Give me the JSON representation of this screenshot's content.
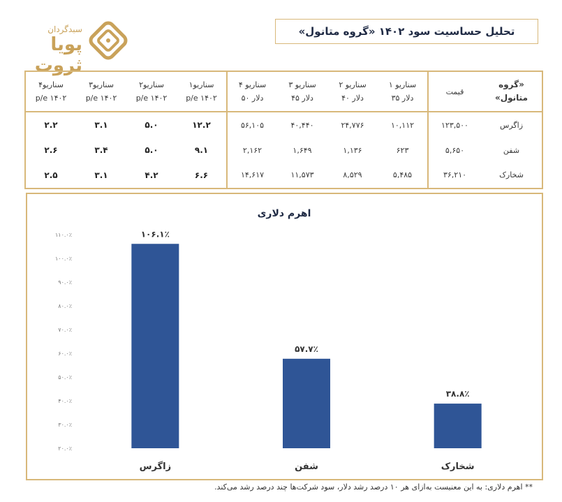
{
  "header": {
    "title": "تحلیل حساسیت سود ۱۴۰۲ «گروه متانول»",
    "logo_top": "سبدگردان",
    "logo_main": "پویا ثروت"
  },
  "table": {
    "corner_label": "«گروه متانول»",
    "price_label": "قیمت",
    "columns": [
      {
        "line1": "سناریو ۱",
        "line2": "دلار ۳۵"
      },
      {
        "line1": "سناریو ۲",
        "line2": "دلار ۴۰"
      },
      {
        "line1": "سناریو ۳",
        "line2": "دلار ۴۵"
      },
      {
        "line1": "سناریو ۴",
        "line2": "دلار ۵۰"
      },
      {
        "line1": "سناریو۱",
        "line2": "p/e ۱۴۰۲"
      },
      {
        "line1": "سناریو۲",
        "line2": "p/e ۱۴۰۲"
      },
      {
        "line1": "سناریو۳",
        "line2": "p/e ۱۴۰۲"
      },
      {
        "line1": "سناریو۴",
        "line2": "p/e ۱۴۰۲"
      }
    ],
    "rows": [
      {
        "name": "زاگرس",
        "price": "۱۲۳,۵۰۰",
        "eps": [
          "۱۰,۱۱۲",
          "۲۴,۷۷۶",
          "۴۰,۴۴۰",
          "۵۶,۱۰۵"
        ],
        "pe": [
          "۱۲.۲",
          "۵.۰",
          "۳.۱",
          "۲.۲"
        ]
      },
      {
        "name": "شفن",
        "price": "۵,۶۵۰",
        "eps": [
          "۶۲۳",
          "۱,۱۳۶",
          "۱,۶۴۹",
          "۲,۱۶۲"
        ],
        "pe": [
          "۹.۱",
          "۵.۰",
          "۳.۴",
          "۲.۶"
        ]
      },
      {
        "name": "شخارک",
        "price": "۳۶,۲۱۰",
        "eps": [
          "۵,۴۸۵",
          "۸,۵۲۹",
          "۱۱,۵۷۳",
          "۱۴,۶۱۷"
        ],
        "pe": [
          "۶.۶",
          "۴.۲",
          "۳.۱",
          "۲.۵"
        ]
      }
    ]
  },
  "chart_data": {
    "type": "bar",
    "title": "اهرم دلاری",
    "categories": [
      "زاگرس",
      "شفن",
      "شخارک"
    ],
    "values": [
      106.1,
      57.7,
      38.8
    ],
    "value_labels": [
      "۱۰۶.۱٪",
      "۵۷.۷٪",
      "۳۸.۸٪"
    ],
    "ylim": [
      20,
      110
    ],
    "yticks": [
      20,
      30,
      40,
      50,
      60,
      70,
      80,
      90,
      100,
      110
    ],
    "ytick_labels": [
      "۲۰.۰٪",
      "۳۰.۰٪",
      "۴۰.۰٪",
      "۵۰.۰٪",
      "۶۰.۰٪",
      "۷۰.۰٪",
      "۸۰.۰٪",
      "۹۰.۰٪",
      "۱۰۰.۰٪",
      "۱۱۰.۰٪"
    ],
    "bar_color": "#2f5596",
    "grid": false
  },
  "footnote": "** اهرم دلاری: به این معنیست به‌ازای هر ۱۰ درصد رشد دلار، سود شرکت‌ها چند درصد رشد می‌کند.",
  "colors": {
    "border": "#d8b87a",
    "title_text": "#1f2a44",
    "logo": "#c9a25a"
  }
}
